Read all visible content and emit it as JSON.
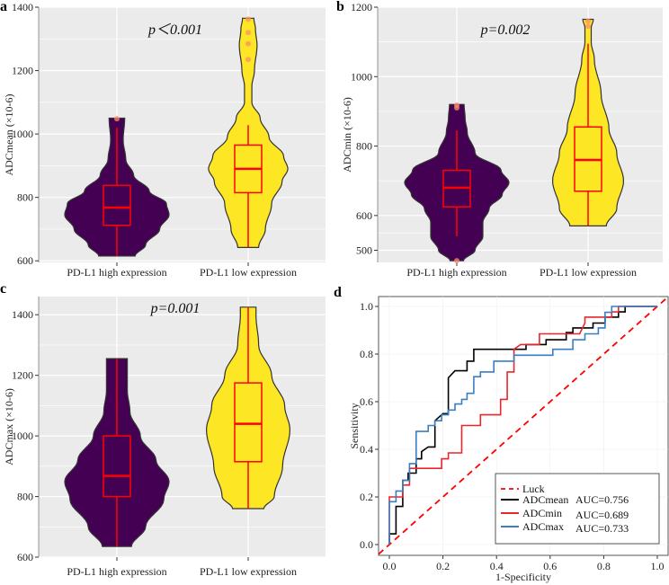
{
  "colors": {
    "high": "#440154",
    "low": "#fde725",
    "box": "#ff0000",
    "panel_bg": "#ebebeb",
    "grid": "#ffffff",
    "outlier": "#ff8c69",
    "mean": "#000000",
    "min": "#e8262c",
    "max": "#3a7fc1",
    "luck": "#ff0000"
  },
  "chart_data": [
    {
      "panel": "a",
      "type": "violin",
      "ylabel": "ADCmean (×10-6)",
      "annotation": "p＜0.001",
      "ylim": [
        595,
        1400
      ],
      "yticks": [
        600,
        800,
        1000,
        1200,
        1400
      ],
      "categories": [
        "PD-L1 high expression",
        "PD-L1 low expression"
      ],
      "grid": true,
      "groups": [
        {
          "density": [
            [
              615,
              0.35
            ],
            [
              650,
              0.55
            ],
            [
              700,
              0.82
            ],
            [
              745,
              1.0
            ],
            [
              780,
              0.95
            ],
            [
              820,
              0.62
            ],
            [
              870,
              0.32
            ],
            [
              920,
              0.17
            ],
            [
              980,
              0.12
            ],
            [
              1050,
              0.15
            ]
          ],
          "whisker": [
            615,
            1020
          ],
          "q1": 712,
          "median": 768,
          "q3": 838,
          "outliers": [
            1048
          ]
        },
        {
          "density": [
            [
              642,
              0.2
            ],
            [
              700,
              0.33
            ],
            [
              780,
              0.45
            ],
            [
              850,
              0.65
            ],
            [
              890,
              0.76
            ],
            [
              930,
              0.68
            ],
            [
              990,
              0.4
            ],
            [
              1050,
              0.23
            ],
            [
              1100,
              0.07
            ],
            [
              1150,
              0.07
            ],
            [
              1200,
              0.12
            ],
            [
              1280,
              0.17
            ],
            [
              1330,
              0.14
            ],
            [
              1365,
              0.11
            ]
          ],
          "whisker": [
            642,
            1028
          ],
          "q1": 815,
          "median": 890,
          "q3": 965,
          "outliers": [
            1235,
            1285,
            1320,
            1362
          ]
        }
      ]
    },
    {
      "panel": "b",
      "type": "violin",
      "ylabel": "ADCmin (×10-6)",
      "annotation": "p=0.002",
      "ylim": [
        465,
        1200
      ],
      "yticks": [
        500,
        600,
        800,
        1000,
        1200
      ],
      "categories": [
        "PD-L1 high expression",
        "PD-L1 low expression"
      ],
      "grid": true,
      "groups": [
        {
          "density": [
            [
              470,
              0.13
            ],
            [
              500,
              0.35
            ],
            [
              540,
              0.5
            ],
            [
              580,
              0.5
            ],
            [
              620,
              0.62
            ],
            [
              660,
              0.87
            ],
            [
              695,
              1.0
            ],
            [
              730,
              0.85
            ],
            [
              780,
              0.35
            ],
            [
              840,
              0.2
            ],
            [
              880,
              0.16
            ],
            [
              920,
              0.14
            ]
          ],
          "whisker": [
            540,
            845
          ],
          "q1": 625,
          "median": 680,
          "q3": 730,
          "outliers": [
            470,
            910,
            918
          ]
        },
        {
          "density": [
            [
              570,
              0.35
            ],
            [
              620,
              0.55
            ],
            [
              700,
              0.68
            ],
            [
              780,
              0.55
            ],
            [
              850,
              0.4
            ],
            [
              950,
              0.25
            ],
            [
              1050,
              0.12
            ],
            [
              1100,
              0.06
            ],
            [
              1140,
              0.06
            ],
            [
              1165,
              0.1
            ]
          ],
          "whisker": [
            570,
            1095
          ],
          "q1": 670,
          "median": 760,
          "q3": 855,
          "outliers": [
            1145,
            1160
          ]
        }
      ]
    },
    {
      "panel": "c",
      "type": "violin",
      "ylabel": "ADCmax (×10-6)",
      "annotation": "p=0.001",
      "ylim": [
        600,
        1460
      ],
      "yticks": [
        600,
        800,
        1000,
        1200,
        1400
      ],
      "categories": [
        "PD-L1 high expression",
        "PD-L1 low expression"
      ],
      "grid": true,
      "groups": [
        {
          "density": [
            [
              635,
              0.28
            ],
            [
              700,
              0.55
            ],
            [
              790,
              0.9
            ],
            [
              850,
              1.0
            ],
            [
              920,
              0.75
            ],
            [
              1000,
              0.45
            ],
            [
              1080,
              0.25
            ],
            [
              1150,
              0.2
            ],
            [
              1200,
              0.2
            ],
            [
              1255,
              0.2
            ]
          ],
          "whisker": [
            635,
            1255
          ],
          "q1": 800,
          "median": 868,
          "q3": 1000,
          "outliers": []
        },
        {
          "density": [
            [
              760,
              0.3
            ],
            [
              800,
              0.5
            ],
            [
              900,
              0.66
            ],
            [
              1020,
              0.8
            ],
            [
              1100,
              0.7
            ],
            [
              1200,
              0.45
            ],
            [
              1300,
              0.2
            ],
            [
              1400,
              0.15
            ],
            [
              1425,
              0.15
            ]
          ],
          "whisker": [
            760,
            1425
          ],
          "q1": 915,
          "median": 1040,
          "q3": 1175,
          "outliers": []
        }
      ]
    },
    {
      "panel": "d",
      "type": "line",
      "xlabel": "1-Specificity",
      "ylabel": "Sensitivity",
      "xlim": [
        -0.04,
        1.04
      ],
      "ylim": [
        -0.04,
        1.04
      ],
      "xticks": [
        "0.0",
        "0.2",
        "0.4",
        "0.6",
        "0.8",
        "1.0"
      ],
      "yticks": [
        "0.0",
        "0.2",
        "0.4",
        "0.6",
        "0.8",
        "1.0"
      ],
      "legend": "bottom-right",
      "luck": {
        "name": "Luck",
        "points": [
          [
            -0.04,
            -0.04
          ],
          [
            1.04,
            1.04
          ]
        ]
      },
      "series": [
        {
          "name": "ADCmean",
          "auc": "AUC=0.756",
          "color": "#000000",
          "points": [
            [
              0,
              0
            ],
            [
              0,
              0.045
            ],
            [
              0.025,
              0.045
            ],
            [
              0.025,
              0.16
            ],
            [
              0.05,
              0.16
            ],
            [
              0.05,
              0.27
            ],
            [
              0.07,
              0.27
            ],
            [
              0.07,
              0.3
            ],
            [
              0.1,
              0.3
            ],
            [
              0.1,
              0.36
            ],
            [
              0.12,
              0.36
            ],
            [
              0.12,
              0.39
            ],
            [
              0.145,
              0.41
            ],
            [
              0.17,
              0.41
            ],
            [
              0.17,
              0.52
            ],
            [
              0.2,
              0.55
            ],
            [
              0.22,
              0.55
            ],
            [
              0.22,
              0.7
            ],
            [
              0.245,
              0.73
            ],
            [
              0.29,
              0.73
            ],
            [
              0.29,
              0.77
            ],
            [
              0.315,
              0.77
            ],
            [
              0.315,
              0.82
            ],
            [
              0.51,
              0.82
            ],
            [
              0.51,
              0.84
            ],
            [
              0.585,
              0.84
            ],
            [
              0.585,
              0.86
            ],
            [
              0.66,
              0.86
            ],
            [
              0.66,
              0.89
            ],
            [
              0.685,
              0.89
            ],
            [
              0.685,
              0.91
            ],
            [
              0.76,
              0.91
            ],
            [
              0.76,
              0.93
            ],
            [
              0.805,
              0.93
            ],
            [
              0.805,
              0.955
            ],
            [
              0.855,
              0.955
            ],
            [
              0.855,
              0.977
            ],
            [
              0.88,
              0.977
            ],
            [
              0.88,
              1
            ],
            [
              1,
              1
            ]
          ]
        },
        {
          "name": "ADCmin",
          "auc": "AUC=0.689",
          "color": "#e8262c",
          "points": [
            [
              0,
              0
            ],
            [
              0,
              0.2
            ],
            [
              0.05,
              0.2
            ],
            [
              0.05,
              0.25
            ],
            [
              0.075,
              0.25
            ],
            [
              0.075,
              0.32
            ],
            [
              0.195,
              0.32
            ],
            [
              0.195,
              0.36
            ],
            [
              0.22,
              0.36
            ],
            [
              0.22,
              0.385
            ],
            [
              0.27,
              0.385
            ],
            [
              0.27,
              0.5
            ],
            [
              0.34,
              0.5
            ],
            [
              0.34,
              0.545
            ],
            [
              0.415,
              0.545
            ],
            [
              0.415,
              0.61
            ],
            [
              0.44,
              0.61
            ],
            [
              0.44,
              0.725
            ],
            [
              0.465,
              0.725
            ],
            [
              0.465,
              0.82
            ],
            [
              0.49,
              0.84
            ],
            [
              0.56,
              0.84
            ],
            [
              0.56,
              0.885
            ],
            [
              0.71,
              0.885
            ],
            [
              0.73,
              0.93
            ],
            [
              0.73,
              0.955
            ],
            [
              0.83,
              0.955
            ],
            [
              0.83,
              0.977
            ],
            [
              0.855,
              0.977
            ],
            [
              0.855,
              1
            ],
            [
              1,
              1
            ]
          ]
        },
        {
          "name": "ADCmax",
          "auc": "AUC=0.733",
          "color": "#3a7fc1",
          "points": [
            [
              0,
              0
            ],
            [
              0,
              0.18
            ],
            [
              0.025,
              0.18
            ],
            [
              0.025,
              0.225
            ],
            [
              0.05,
              0.225
            ],
            [
              0.05,
              0.27
            ],
            [
              0.075,
              0.27
            ],
            [
              0.075,
              0.34
            ],
            [
              0.1,
              0.34
            ],
            [
              0.1,
              0.475
            ],
            [
              0.145,
              0.475
            ],
            [
              0.145,
              0.5
            ],
            [
              0.17,
              0.5
            ],
            [
              0.17,
              0.52
            ],
            [
              0.195,
              0.52
            ],
            [
              0.195,
              0.545
            ],
            [
              0.22,
              0.545
            ],
            [
              0.22,
              0.565
            ],
            [
              0.245,
              0.565
            ],
            [
              0.245,
              0.59
            ],
            [
              0.27,
              0.59
            ],
            [
              0.27,
              0.61
            ],
            [
              0.29,
              0.61
            ],
            [
              0.29,
              0.635
            ],
            [
              0.315,
              0.635
            ],
            [
              0.315,
              0.705
            ],
            [
              0.34,
              0.705
            ],
            [
              0.34,
              0.725
            ],
            [
              0.39,
              0.725
            ],
            [
              0.39,
              0.77
            ],
            [
              0.465,
              0.77
            ],
            [
              0.465,
              0.795
            ],
            [
              0.61,
              0.795
            ],
            [
              0.61,
              0.82
            ],
            [
              0.685,
              0.82
            ],
            [
              0.685,
              0.86
            ],
            [
              0.73,
              0.86
            ],
            [
              0.73,
              0.885
            ],
            [
              0.78,
              0.885
            ],
            [
              0.78,
              0.91
            ],
            [
              0.805,
              0.91
            ],
            [
              0.805,
              0.975
            ],
            [
              0.83,
              0.975
            ],
            [
              0.83,
              1
            ],
            [
              1,
              1
            ]
          ]
        }
      ]
    }
  ]
}
